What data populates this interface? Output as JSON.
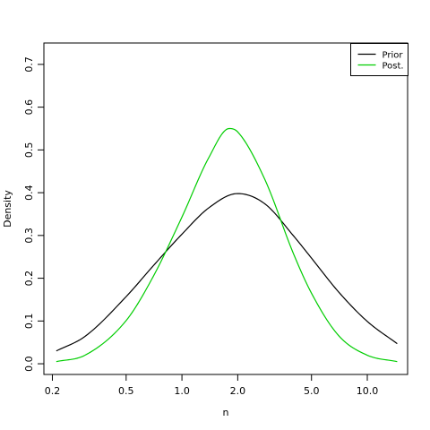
{
  "chart_data": {
    "type": "line",
    "title": "",
    "xlabel": "n",
    "ylabel": "Density",
    "x_scale": "log",
    "xlim": [
      0.18,
      16.5
    ],
    "ylim": [
      -0.025,
      0.75
    ],
    "x_ticks": [
      0.2,
      0.5,
      1.0,
      2.0,
      5.0,
      10.0
    ],
    "x_tick_labels": [
      "0.2",
      "0.5",
      "1.0",
      "2.0",
      "5.0",
      "10.0"
    ],
    "y_ticks": [
      0.0,
      0.1,
      0.2,
      0.3,
      0.4,
      0.5,
      0.6,
      0.7
    ],
    "y_tick_labels": [
      "0.0",
      "0.1",
      "0.2",
      "0.3",
      "0.4",
      "0.5",
      "0.6",
      "0.7"
    ],
    "grid": false,
    "legend_position": "top-right",
    "series": [
      {
        "name": "Prior",
        "color": "#000000",
        "x": [
          0.21,
          0.3,
          0.5,
          0.7,
          1.0,
          1.4,
          2.0,
          2.8,
          4.0,
          5.0,
          7.0,
          10.0,
          14.5
        ],
        "y": [
          0.03,
          0.064,
          0.157,
          0.229,
          0.303,
          0.365,
          0.398,
          0.374,
          0.299,
          0.247,
          0.168,
          0.099,
          0.047
        ]
      },
      {
        "name": "Post.",
        "color": "#00cd00",
        "x": [
          0.21,
          0.3,
          0.5,
          0.7,
          1.0,
          1.4,
          1.8,
          2.0,
          2.8,
          4.0,
          5.0,
          7.0,
          10.0,
          14.5
        ],
        "y": [
          0.005,
          0.02,
          0.101,
          0.204,
          0.343,
          0.483,
          0.55,
          0.542,
          0.431,
          0.257,
          0.165,
          0.066,
          0.02,
          0.005
        ]
      }
    ]
  }
}
